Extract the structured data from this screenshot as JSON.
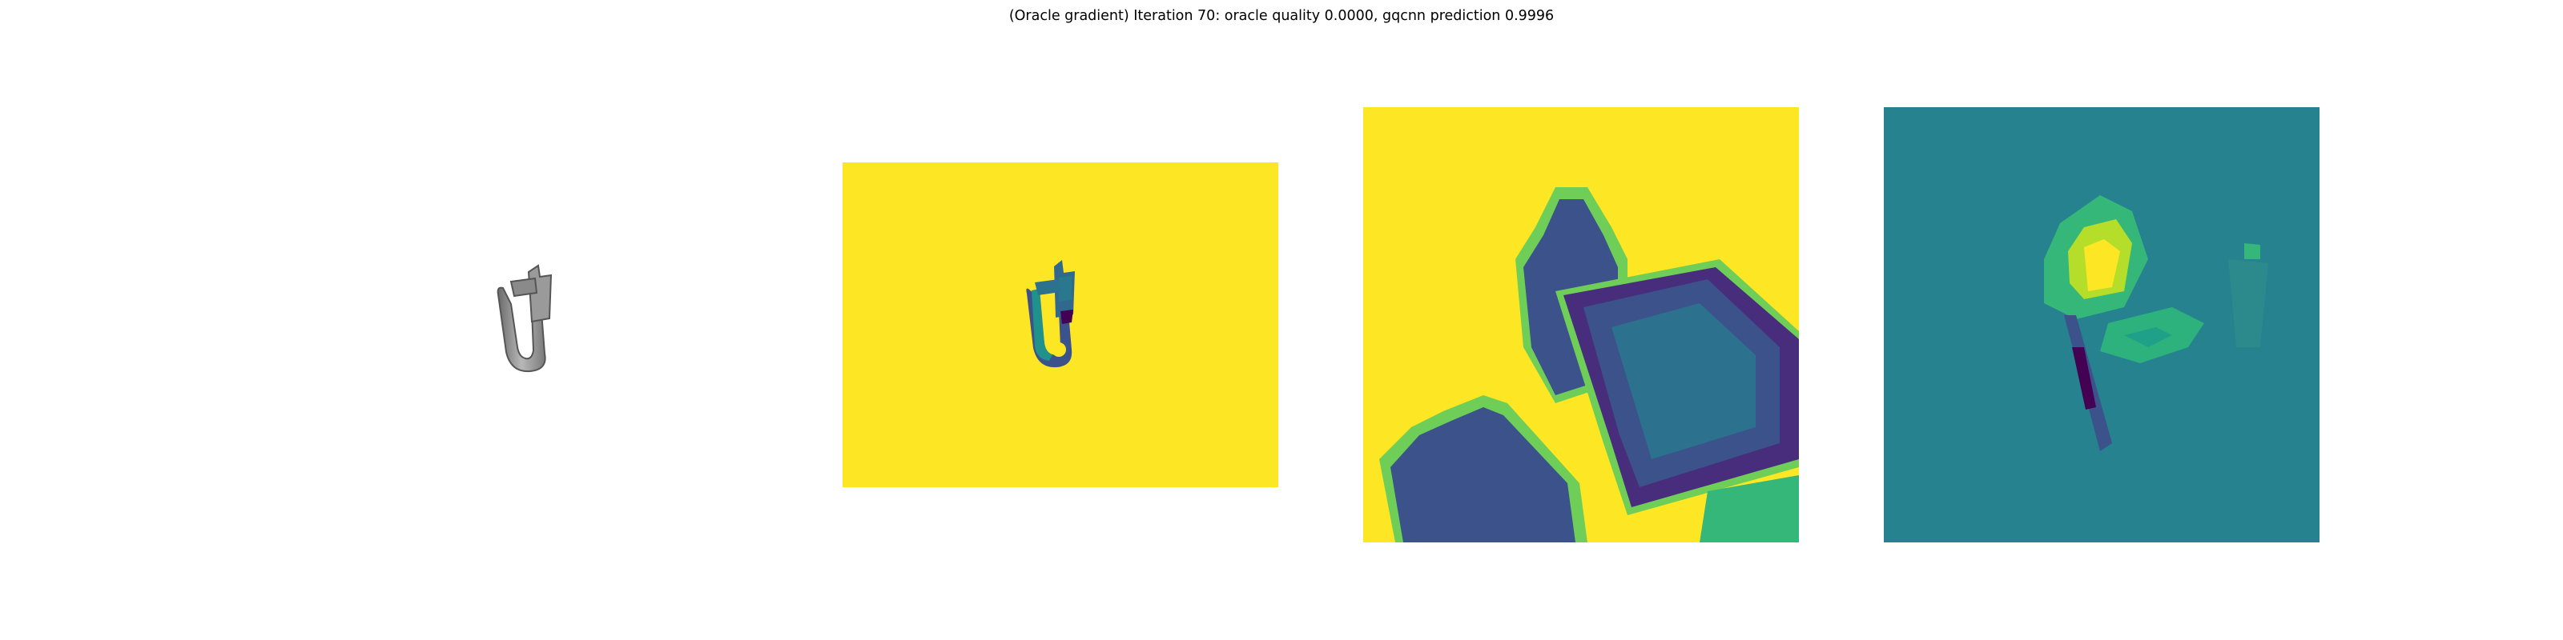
{
  "figure": {
    "title": "(Oracle gradient) Iteration 70: oracle quality 0.0000, gqcnn prediction 0.9996"
  },
  "panels": [
    {
      "name": "rendered-object",
      "content": "grayscale 3D render of clip-shaped object"
    },
    {
      "name": "depth-image",
      "content": "viridis depth image, object centered"
    },
    {
      "name": "depth-crop",
      "content": "zoomed viridis depth crop"
    },
    {
      "name": "oracle-gradient",
      "content": "viridis gradient map"
    }
  ],
  "colors": {
    "viridis_yellow": "#fde725",
    "viridis_teal": "#26828e",
    "viridis_purple": "#440154",
    "viridis_indigo": "#3b528b",
    "viridis_green": "#35b779",
    "background": "#ffffff"
  }
}
